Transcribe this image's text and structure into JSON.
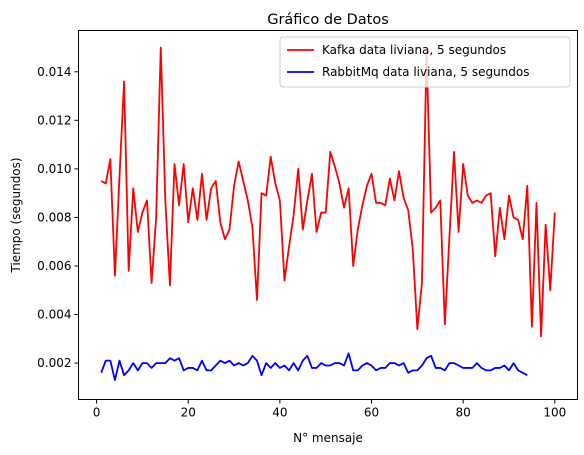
{
  "chart_data": {
    "type": "line",
    "title": "Gráfico de Datos",
    "xlabel": "N° mensaje",
    "ylabel": "Tiempo (segundos)",
    "xlim": [
      -3.95,
      104.95
    ],
    "ylim": [
      0.0005,
      0.0157
    ],
    "x_ticks": [
      0,
      20,
      40,
      60,
      80,
      100
    ],
    "x_tick_labels": [
      "0",
      "20",
      "40",
      "60",
      "80",
      "100"
    ],
    "y_ticks": [
      0.002,
      0.004,
      0.006,
      0.008,
      0.01,
      0.012,
      0.014
    ],
    "y_tick_labels": [
      "0.002",
      "0.004",
      "0.006",
      "0.008",
      "0.010",
      "0.012",
      "0.014"
    ],
    "grid": false,
    "legend_position": "top-right",
    "series": [
      {
        "name": "Kafka data liviana, 5 segundos",
        "color": "#ff0000",
        "x_start": 1,
        "values": [
          0.0095,
          0.0094,
          0.0104,
          0.0056,
          0.0097,
          0.0136,
          0.0058,
          0.0092,
          0.0074,
          0.0082,
          0.0087,
          0.0053,
          0.008,
          0.015,
          0.0087,
          0.0052,
          0.0102,
          0.0085,
          0.0102,
          0.0078,
          0.0092,
          0.0079,
          0.0098,
          0.0079,
          0.0092,
          0.0095,
          0.0078,
          0.0071,
          0.0075,
          0.0093,
          0.0103,
          0.0095,
          0.0087,
          0.0076,
          0.0046,
          0.009,
          0.0089,
          0.0105,
          0.0094,
          0.0087,
          0.0054,
          0.0068,
          0.0081,
          0.01,
          0.0075,
          0.0087,
          0.0098,
          0.0074,
          0.0082,
          0.0082,
          0.0107,
          0.0101,
          0.0094,
          0.0084,
          0.0092,
          0.006,
          0.0075,
          0.0085,
          0.0093,
          0.0098,
          0.0086,
          0.0086,
          0.0085,
          0.0096,
          0.0087,
          0.0099,
          0.0088,
          0.0083,
          0.0067,
          0.0034,
          0.0053,
          0.0148,
          0.0082,
          0.0084,
          0.0087,
          0.0036,
          0.0072,
          0.0107,
          0.0074,
          0.0102,
          0.0089,
          0.0086,
          0.0087,
          0.0086,
          0.0089,
          0.009,
          0.0064,
          0.0084,
          0.0071,
          0.0089,
          0.008,
          0.0079,
          0.0071,
          0.0093,
          0.0035,
          0.0086,
          0.0031,
          0.0077,
          0.005,
          0.0082
        ]
      },
      {
        "name": "RabbitMq data liviana, 5 segundos",
        "color": "#0000ff",
        "x_start": 1,
        "values": [
          0.0016,
          0.0021,
          0.0021,
          0.0013,
          0.0021,
          0.0015,
          0.0017,
          0.002,
          0.0017,
          0.002,
          0.002,
          0.0018,
          0.002,
          0.002,
          0.002,
          0.0022,
          0.0021,
          0.0022,
          0.0017,
          0.0018,
          0.0018,
          0.0017,
          0.0021,
          0.0017,
          0.0017,
          0.0019,
          0.0021,
          0.002,
          0.0021,
          0.0019,
          0.002,
          0.0019,
          0.002,
          0.0023,
          0.0021,
          0.0015,
          0.002,
          0.0018,
          0.002,
          0.0018,
          0.0019,
          0.0017,
          0.002,
          0.0017,
          0.0021,
          0.0023,
          0.0018,
          0.0018,
          0.002,
          0.0019,
          0.0019,
          0.002,
          0.002,
          0.0019,
          0.0024,
          0.0017,
          0.0017,
          0.0019,
          0.002,
          0.0019,
          0.0017,
          0.0018,
          0.0018,
          0.002,
          0.002,
          0.0019,
          0.002,
          0.0016,
          0.0017,
          0.0017,
          0.0019,
          0.0022,
          0.0023,
          0.0018,
          0.0018,
          0.0017,
          0.002,
          0.002,
          0.0019,
          0.0018,
          0.0018,
          0.0018,
          0.002,
          0.0018,
          0.0017,
          0.0017,
          0.0018,
          0.0018,
          0.0019,
          0.0017,
          0.002,
          0.0017,
          0.0016,
          0.0015
        ]
      }
    ]
  }
}
